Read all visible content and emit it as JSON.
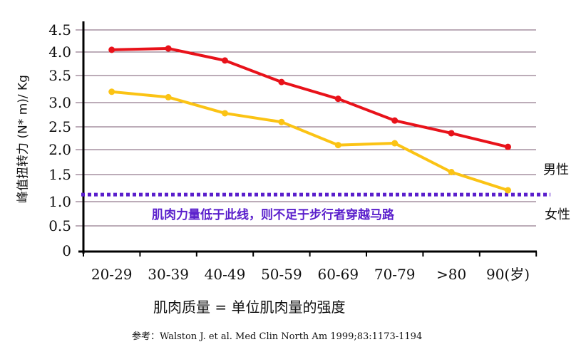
{
  "chart_data": {
    "type": "line",
    "title": "",
    "ylabel": "峰值扭转力 (N* m)/ Kg",
    "xlabel": "肌肉质量 = 单位肌肉量的强度",
    "categories": [
      "20-29",
      "30-39",
      "40-49",
      "50-59",
      "60-69",
      "70-79",
      ">80",
      "90(岁)"
    ],
    "yticks": [
      "0",
      "0.5",
      "1.0",
      "1.5",
      "2.0",
      "2.5",
      "3.0",
      "3.5",
      "4.0",
      "4.5"
    ],
    "ylim": [
      0,
      4.5
    ],
    "grid": true,
    "series": [
      {
        "name": "男性",
        "color": "#e8121a",
        "values": [
          4.05,
          4.08,
          3.82,
          3.38,
          3.07,
          2.63,
          2.36,
          2.06
        ]
      },
      {
        "name": "女性",
        "color": "#fbc314",
        "values": [
          3.2,
          3.1,
          2.78,
          2.6,
          2.1,
          2.14,
          1.55,
          1.21
        ]
      }
    ],
    "threshold": {
      "value": 1.13,
      "color": "#5a1fcc",
      "label": "肌肉力量低于此线，则不足于步行者穿越马路"
    },
    "reference": "参考：Walston J. et al. Med Clin North Am 1999;83:1173-1194"
  }
}
